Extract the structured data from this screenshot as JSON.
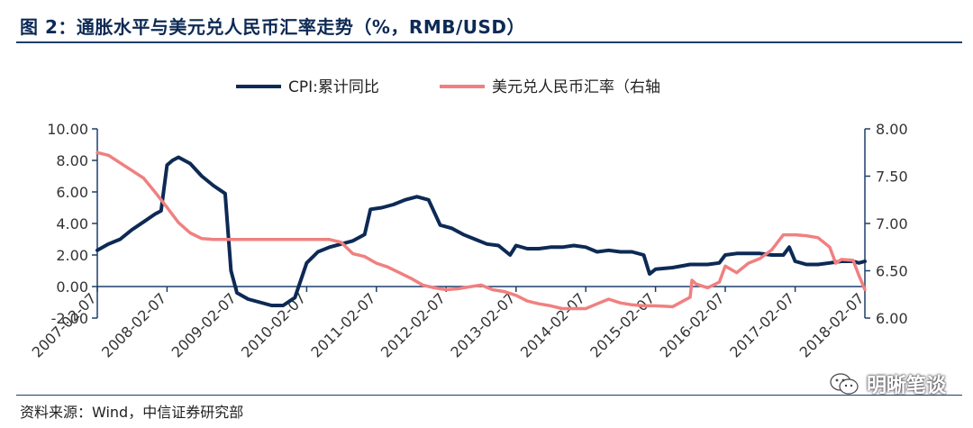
{
  "header": {
    "title": "图 2：通胀水平与美元兑人民币汇率走势（%，RMB/USD）"
  },
  "footer": {
    "source": "资料来源：Wind，中信证券研究部",
    "watermark": "明晰笔谈",
    "watermark_icon": "wechat-icon"
  },
  "chart_data": {
    "type": "line",
    "title": "",
    "xlabel": "",
    "ylabel": "",
    "legend_position": "top-center",
    "grid": false,
    "colors": {
      "cpi": "#0d2a55",
      "fx": "#f08080"
    },
    "x_ticks": [
      "2007-02-07",
      "2008-02-07",
      "2009-02-07",
      "2010-02-07",
      "2011-02-07",
      "2012-02-07",
      "2013-02-07",
      "2014-02-07",
      "2015-02-07",
      "2016-02-07",
      "2017-02-07",
      "2018-02-07"
    ],
    "y_left": {
      "min": -2,
      "max": 10,
      "ticks": [
        "-2.00",
        "0.00",
        "2.00",
        "4.00",
        "6.00",
        "8.00",
        "10.00"
      ]
    },
    "y_right": {
      "min": 6.0,
      "max": 8.0,
      "ticks": [
        "6.00",
        "6.50",
        "7.00",
        "7.50",
        "8.00"
      ]
    },
    "series": [
      {
        "name": "CPI:累计同比",
        "axis": "left",
        "points": [
          [
            "2007-02-07",
            2.3
          ],
          [
            "2007-04-07",
            2.7
          ],
          [
            "2007-06-07",
            3.0
          ],
          [
            "2007-08-07",
            3.6
          ],
          [
            "2007-10-07",
            4.1
          ],
          [
            "2007-12-07",
            4.6
          ],
          [
            "2008-01-07",
            4.8
          ],
          [
            "2008-02-07",
            7.7
          ],
          [
            "2008-03-07",
            8.0
          ],
          [
            "2008-04-07",
            8.2
          ],
          [
            "2008-06-07",
            7.8
          ],
          [
            "2008-08-07",
            7.0
          ],
          [
            "2008-10-07",
            6.4
          ],
          [
            "2008-12-07",
            5.9
          ],
          [
            "2009-01-07",
            1.0
          ],
          [
            "2009-02-07",
            -0.4
          ],
          [
            "2009-04-07",
            -0.8
          ],
          [
            "2009-06-07",
            -1.0
          ],
          [
            "2009-08-07",
            -1.2
          ],
          [
            "2009-10-07",
            -1.2
          ],
          [
            "2009-12-07",
            -0.7
          ],
          [
            "2010-02-07",
            1.5
          ],
          [
            "2010-04-07",
            2.2
          ],
          [
            "2010-06-07",
            2.5
          ],
          [
            "2010-08-07",
            2.7
          ],
          [
            "2010-10-07",
            2.9
          ],
          [
            "2010-12-07",
            3.3
          ],
          [
            "2011-01-07",
            4.9
          ],
          [
            "2011-03-07",
            5.0
          ],
          [
            "2011-05-07",
            5.2
          ],
          [
            "2011-07-07",
            5.5
          ],
          [
            "2011-09-07",
            5.7
          ],
          [
            "2011-11-07",
            5.5
          ],
          [
            "2012-01-07",
            3.9
          ],
          [
            "2012-03-07",
            3.7
          ],
          [
            "2012-05-07",
            3.3
          ],
          [
            "2012-07-07",
            3.0
          ],
          [
            "2012-09-07",
            2.7
          ],
          [
            "2012-11-07",
            2.6
          ],
          [
            "2013-01-07",
            2.0
          ],
          [
            "2013-02-07",
            2.6
          ],
          [
            "2013-04-07",
            2.4
          ],
          [
            "2013-06-07",
            2.4
          ],
          [
            "2013-08-07",
            2.5
          ],
          [
            "2013-10-07",
            2.5
          ],
          [
            "2013-12-07",
            2.6
          ],
          [
            "2014-02-07",
            2.5
          ],
          [
            "2014-04-07",
            2.2
          ],
          [
            "2014-06-07",
            2.3
          ],
          [
            "2014-08-07",
            2.2
          ],
          [
            "2014-10-07",
            2.2
          ],
          [
            "2014-12-07",
            2.0
          ],
          [
            "2015-01-07",
            0.8
          ],
          [
            "2015-02-07",
            1.1
          ],
          [
            "2015-05-07",
            1.2
          ],
          [
            "2015-08-07",
            1.4
          ],
          [
            "2015-11-07",
            1.4
          ],
          [
            "2016-01-07",
            1.5
          ],
          [
            "2016-02-07",
            2.0
          ],
          [
            "2016-04-07",
            2.1
          ],
          [
            "2016-06-07",
            2.1
          ],
          [
            "2016-08-07",
            2.1
          ],
          [
            "2016-10-07",
            2.0
          ],
          [
            "2016-12-07",
            2.0
          ],
          [
            "2017-01-07",
            2.5
          ],
          [
            "2017-02-07",
            1.6
          ],
          [
            "2017-04-07",
            1.4
          ],
          [
            "2017-06-07",
            1.4
          ],
          [
            "2017-08-07",
            1.5
          ],
          [
            "2017-10-07",
            1.6
          ],
          [
            "2017-12-07",
            1.6
          ],
          [
            "2018-01-07",
            1.5
          ],
          [
            "2018-02-07",
            1.6
          ]
        ]
      },
      {
        "name": "美元兑人民币汇率（右轴",
        "axis": "right",
        "points": [
          [
            "2007-02-07",
            7.75
          ],
          [
            "2007-04-07",
            7.72
          ],
          [
            "2007-06-07",
            7.64
          ],
          [
            "2007-08-07",
            7.56
          ],
          [
            "2007-10-07",
            7.48
          ],
          [
            "2007-12-07",
            7.33
          ],
          [
            "2008-02-07",
            7.17
          ],
          [
            "2008-04-07",
            7.01
          ],
          [
            "2008-06-07",
            6.9
          ],
          [
            "2008-08-07",
            6.84
          ],
          [
            "2008-10-07",
            6.83
          ],
          [
            "2009-02-07",
            6.83
          ],
          [
            "2009-08-07",
            6.83
          ],
          [
            "2010-02-07",
            6.83
          ],
          [
            "2010-06-07",
            6.83
          ],
          [
            "2010-08-07",
            6.8
          ],
          [
            "2010-10-07",
            6.68
          ],
          [
            "2010-12-07",
            6.65
          ],
          [
            "2011-02-07",
            6.58
          ],
          [
            "2011-04-07",
            6.54
          ],
          [
            "2011-06-07",
            6.48
          ],
          [
            "2011-08-07",
            6.42
          ],
          [
            "2011-10-07",
            6.35
          ],
          [
            "2011-12-07",
            6.32
          ],
          [
            "2012-02-07",
            6.3
          ],
          [
            "2012-04-07",
            6.31
          ],
          [
            "2012-06-07",
            6.33
          ],
          [
            "2012-08-07",
            6.35
          ],
          [
            "2012-10-07",
            6.3
          ],
          [
            "2012-12-07",
            6.28
          ],
          [
            "2013-02-07",
            6.24
          ],
          [
            "2013-04-07",
            6.18
          ],
          [
            "2013-06-07",
            6.15
          ],
          [
            "2013-08-07",
            6.13
          ],
          [
            "2013-10-07",
            6.1
          ],
          [
            "2013-12-07",
            6.1
          ],
          [
            "2014-02-07",
            6.1
          ],
          [
            "2014-04-07",
            6.15
          ],
          [
            "2014-06-07",
            6.2
          ],
          [
            "2014-08-07",
            6.16
          ],
          [
            "2014-10-07",
            6.14
          ],
          [
            "2014-12-07",
            6.13
          ],
          [
            "2015-02-07",
            6.13
          ],
          [
            "2015-05-07",
            6.12
          ],
          [
            "2015-08-07",
            6.22
          ],
          [
            "2015-08-17",
            6.4
          ],
          [
            "2015-09-07",
            6.36
          ],
          [
            "2015-11-07",
            6.32
          ],
          [
            "2016-01-07",
            6.38
          ],
          [
            "2016-02-07",
            6.55
          ],
          [
            "2016-04-07",
            6.48
          ],
          [
            "2016-06-07",
            6.58
          ],
          [
            "2016-08-07",
            6.63
          ],
          [
            "2016-10-07",
            6.72
          ],
          [
            "2016-12-07",
            6.88
          ],
          [
            "2017-02-07",
            6.88
          ],
          [
            "2017-04-07",
            6.87
          ],
          [
            "2017-06-07",
            6.85
          ],
          [
            "2017-08-07",
            6.75
          ],
          [
            "2017-09-07",
            6.58
          ],
          [
            "2017-10-07",
            6.62
          ],
          [
            "2017-12-07",
            6.61
          ],
          [
            "2018-01-07",
            6.45
          ],
          [
            "2018-02-07",
            6.3
          ]
        ]
      }
    ]
  }
}
